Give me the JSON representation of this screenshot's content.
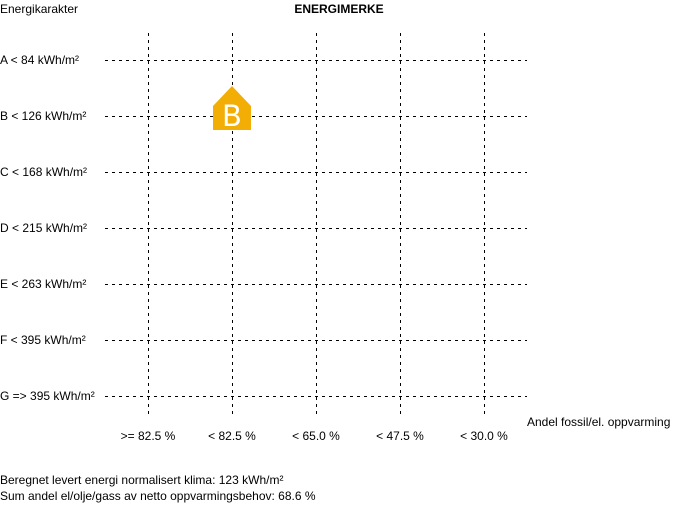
{
  "chart_data": {
    "type": "table",
    "title": "ENERGIMERKE",
    "ylabel": "Energikarakter",
    "xlabel": "Andel fossil/el. oppvarming",
    "rows": [
      "A < 84 kWh/m²",
      "B < 126 kWh/m²",
      "C < 168 kWh/m²",
      "D < 215 kWh/m²",
      "E < 263 kWh/m²",
      "F < 395 kWh/m²",
      "G => 395 kWh/m²"
    ],
    "columns": [
      ">= 82.5 %",
      "< 82.5 %",
      "< 65.0 %",
      "< 47.5 %",
      "< 30.0 %"
    ],
    "grid": true,
    "marker": {
      "letter": "B",
      "row": "B < 126 kWh/m²",
      "column": "< 82.5 %",
      "color": "#F2AE05",
      "text_color": "#ffffff"
    }
  },
  "footer": {
    "energy_line": "Beregnet levert energi normalisert klima: 123 kWh/m²",
    "share_line": "Sum andel el/olje/gass av netto oppvarmingsbehov: 68.6 %"
  }
}
